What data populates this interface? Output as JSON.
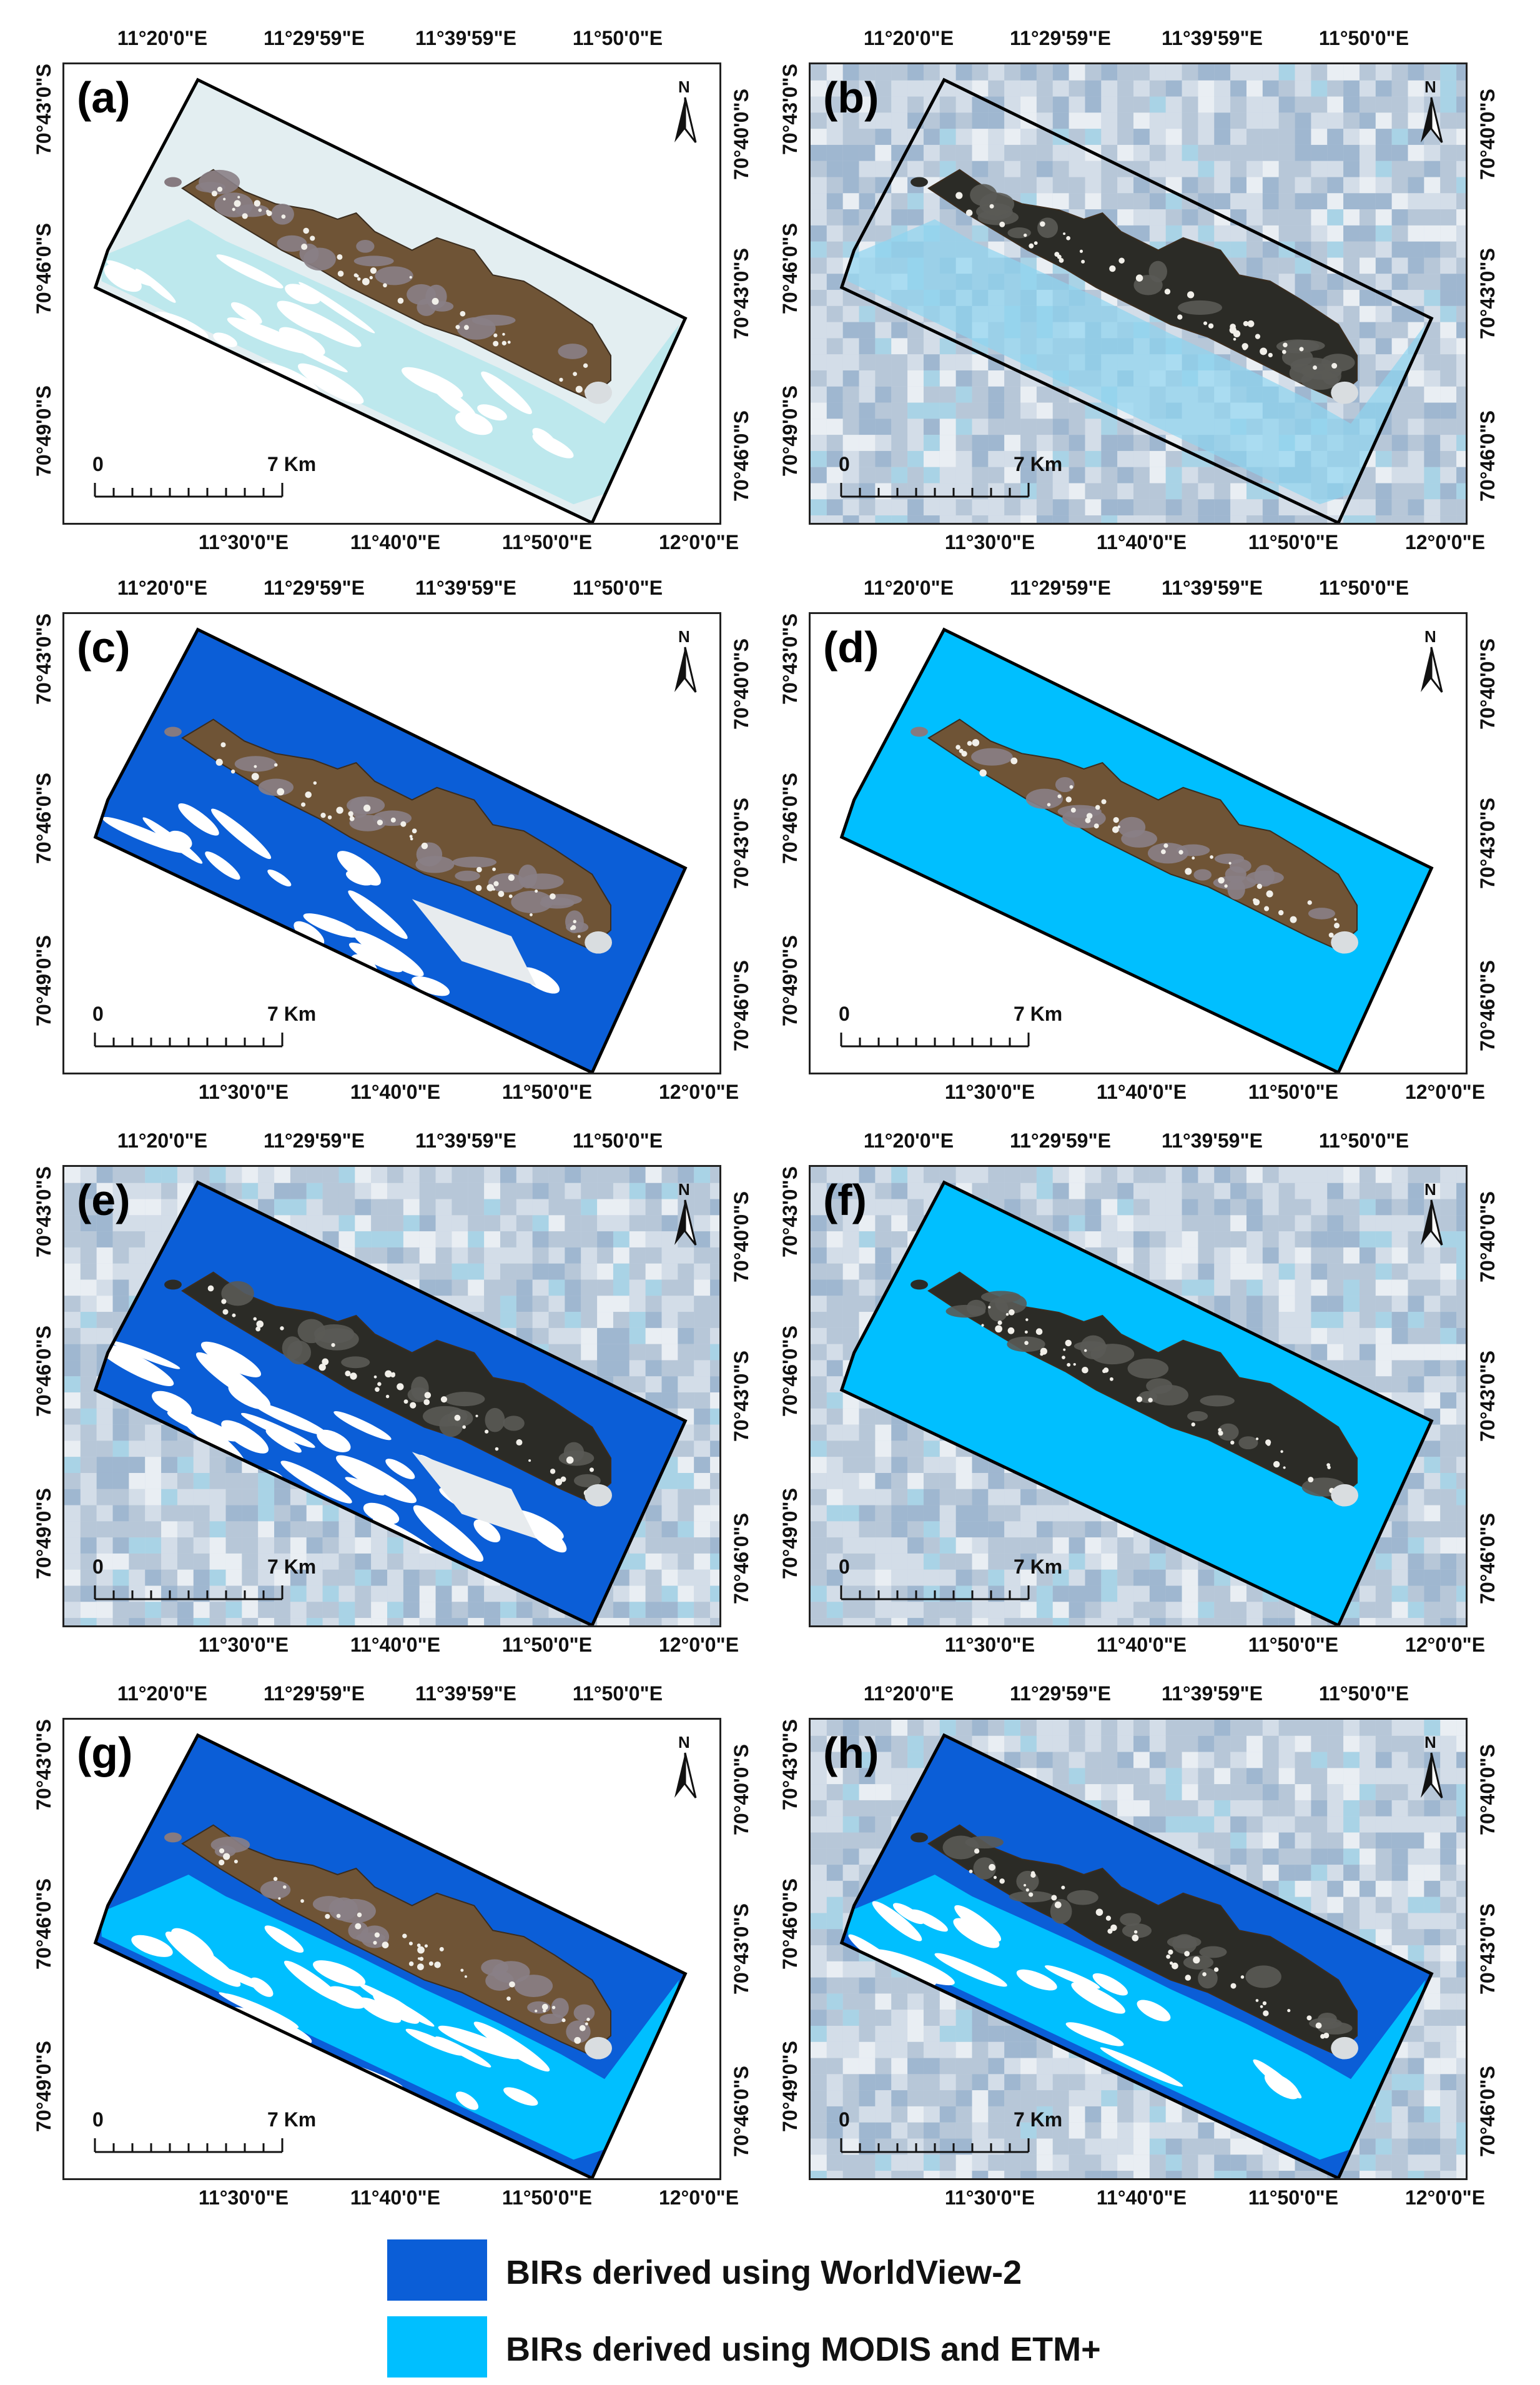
{
  "panels": [
    {
      "id": "a",
      "label": "(a)",
      "background": "satellite-hires",
      "fill": "none",
      "top_ticks": [
        "11°20'0\"E",
        "11°29'59\"E",
        "11°39'59\"E",
        "11°50'0\"E"
      ],
      "bottom_ticks": [
        "11°30'0\"E",
        "11°40'0\"E",
        "11°50'0\"E",
        "12°0'0\"E"
      ],
      "left_ticks": [
        "70°43'0\"S",
        "70°46'0\"S",
        "70°49'0\"S"
      ],
      "right_ticks": [
        "70°40'0\"S",
        "70°43'0\"S",
        "70°46'0\"S"
      ],
      "scale": {
        "zero": "0",
        "end": "7 Km"
      },
      "north": "N"
    },
    {
      "id": "b",
      "label": "(b)",
      "background": "modis-pixelated",
      "fill": "none",
      "top_ticks": [
        "11°20'0\"E",
        "11°29'59\"E",
        "11°39'59\"E",
        "11°50'0\"E"
      ],
      "bottom_ticks": [
        "11°30'0\"E",
        "11°40'0\"E",
        "11°50'0\"E",
        "12°0'0\"E"
      ],
      "left_ticks": [
        "70°43'0\"S",
        "70°46'0\"S",
        "70°49'0\"S"
      ],
      "right_ticks": [
        "70°40'0\"S",
        "70°43'0\"S",
        "70°46'0\"S"
      ],
      "scale": {
        "zero": "0",
        "end": "7 Km"
      },
      "north": "N"
    },
    {
      "id": "c",
      "label": "(c)",
      "background": "white",
      "fill": "worldview",
      "top_ticks": [
        "11°20'0\"E",
        "11°29'59\"E",
        "11°39'59\"E",
        "11°50'0\"E"
      ],
      "bottom_ticks": [
        "11°30'0\"E",
        "11°40'0\"E",
        "11°50'0\"E",
        "12°0'0\"E"
      ],
      "left_ticks": [
        "70°43'0\"S",
        "70°46'0\"S",
        "70°49'0\"S"
      ],
      "right_ticks": [
        "70°40'0\"S",
        "70°43'0\"S",
        "70°46'0\"S"
      ],
      "scale": {
        "zero": "0",
        "end": "7 Km"
      },
      "north": "N"
    },
    {
      "id": "d",
      "label": "(d)",
      "background": "white",
      "fill": "modis",
      "top_ticks": [
        "11°20'0\"E",
        "11°29'59\"E",
        "11°39'59\"E",
        "11°50'0\"E"
      ],
      "bottom_ticks": [
        "11°30'0\"E",
        "11°40'0\"E",
        "11°50'0\"E",
        "12°0'0\"E"
      ],
      "left_ticks": [
        "70°43'0\"S",
        "70°46'0\"S",
        "70°49'0\"S"
      ],
      "right_ticks": [
        "70°40'0\"S",
        "70°43'0\"S",
        "70°46'0\"S"
      ],
      "scale": {
        "zero": "0",
        "end": "7 Km"
      },
      "north": "N"
    },
    {
      "id": "e",
      "label": "(e)",
      "background": "modis-pixelated",
      "fill": "worldview",
      "top_ticks": [
        "11°20'0\"E",
        "11°29'59\"E",
        "11°39'59\"E",
        "11°50'0\"E"
      ],
      "bottom_ticks": [
        "11°30'0\"E",
        "11°40'0\"E",
        "11°50'0\"E",
        "12°0'0\"E"
      ],
      "left_ticks": [
        "70°43'0\"S",
        "70°46'0\"S",
        "70°49'0\"S"
      ],
      "right_ticks": [
        "70°40'0\"S",
        "70°43'0\"S",
        "70°46'0\"S"
      ],
      "scale": {
        "zero": "0",
        "end": "7 Km"
      },
      "north": "N"
    },
    {
      "id": "f",
      "label": "(f)",
      "background": "modis-pixelated",
      "fill": "modis",
      "top_ticks": [
        "11°20'0\"E",
        "11°29'59\"E",
        "11°39'59\"E",
        "11°50'0\"E"
      ],
      "bottom_ticks": [
        "11°30'0\"E",
        "11°40'0\"E",
        "11°50'0\"E",
        "12°0'0\"E"
      ],
      "left_ticks": [
        "70°43'0\"S",
        "70°46'0\"S",
        "70°49'0\"S"
      ],
      "right_ticks": [
        "70°40'0\"S",
        "70°43'0\"S",
        "70°46'0\"S"
      ],
      "scale": {
        "zero": "0",
        "end": "7 Km"
      },
      "north": "N"
    },
    {
      "id": "g",
      "label": "(g)",
      "background": "white",
      "fill": "both",
      "top_ticks": [
        "11°20'0\"E",
        "11°29'59\"E",
        "11°39'59\"E",
        "11°50'0\"E"
      ],
      "bottom_ticks": [
        "11°30'0\"E",
        "11°40'0\"E",
        "11°50'0\"E",
        "12°0'0\"E"
      ],
      "left_ticks": [
        "70°43'0\"S",
        "70°46'0\"S",
        "70°49'0\"S"
      ],
      "right_ticks": [
        "70°40'0\"S",
        "70°43'0\"S",
        "70°46'0\"S"
      ],
      "scale": {
        "zero": "0",
        "end": "7 Km"
      },
      "north": "N"
    },
    {
      "id": "h",
      "label": "(h)",
      "background": "modis-pixelated",
      "fill": "both",
      "top_ticks": [
        "11°20'0\"E",
        "11°29'59\"E",
        "11°39'59\"E",
        "11°50'0\"E"
      ],
      "bottom_ticks": [
        "11°30'0\"E",
        "11°40'0\"E",
        "11°50'0\"E",
        "12°0'0\"E"
      ],
      "left_ticks": [
        "70°43'0\"S",
        "70°46'0\"S",
        "70°49'0\"S"
      ],
      "right_ticks": [
        "70°40'0\"S",
        "70°43'0\"S",
        "70°46'0\"S"
      ],
      "scale": {
        "zero": "0",
        "end": "7 Km"
      },
      "north": "N"
    }
  ],
  "legend": [
    {
      "label": "BIRs derived using WorldView-2",
      "color": "#0b5ed7"
    },
    {
      "label": "BIRs derived using MODIS and ETM+",
      "color": "#00bfff"
    }
  ],
  "colors": {
    "worldview": "#0b5ed7",
    "modis": "#00bfff",
    "rock": "#6f5436",
    "rock_dark": "#2b2b26",
    "snow": "#f2f4f6",
    "ice": "#9fe3ea"
  }
}
